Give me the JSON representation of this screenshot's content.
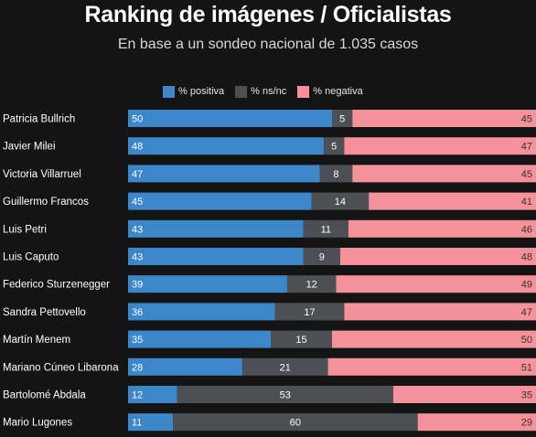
{
  "chart_data": {
    "type": "bar",
    "stacked": true,
    "orientation": "horizontal",
    "title": "Ranking de imágenes / Oficialistas",
    "subtitle": "En base a un sondeo nacional de 1.035 casos",
    "legend_position": "top-center",
    "categories": [
      "Patricia Bullrich",
      "Javier Milei",
      "Victoria Villarruel",
      "Guillermo Francos",
      "Luis Petri",
      "Luis Caputo",
      "Federico Sturzenegger",
      "Sandra Pettovello",
      "Martín Menem",
      "Mariano Cúneo Libarona",
      "Bartolomé Abdala",
      "Mario Lugones"
    ],
    "series": [
      {
        "name": "% positiva",
        "color": "#3b87c9",
        "values": [
          50,
          48,
          47,
          45,
          43,
          43,
          39,
          36,
          35,
          28,
          12,
          11
        ]
      },
      {
        "name": "% ns/nc",
        "color": "#4c5054",
        "values": [
          5,
          5,
          8,
          14,
          11,
          9,
          12,
          17,
          15,
          21,
          53,
          60
        ]
      },
      {
        "name": "% negativa",
        "color": "#f4919a",
        "values": [
          45,
          47,
          45,
          41,
          46,
          48,
          49,
          47,
          50,
          51,
          35,
          29
        ]
      }
    ]
  }
}
